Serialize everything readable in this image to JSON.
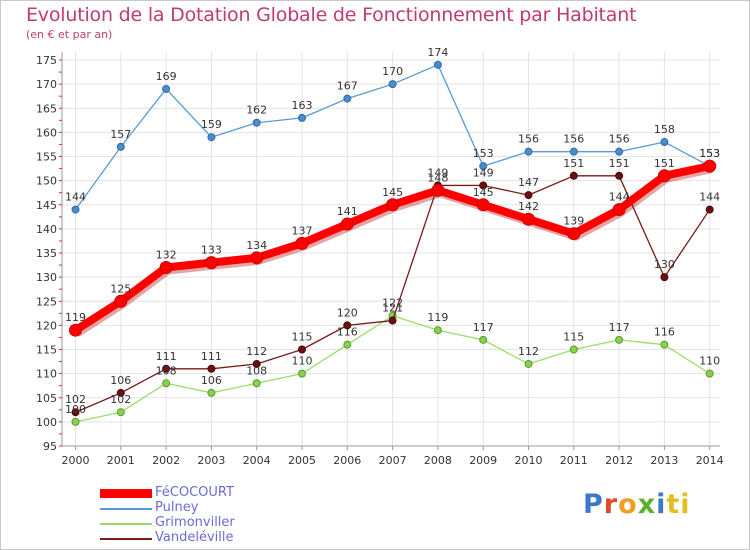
{
  "chart_data": {
    "type": "line",
    "title": "Evolution de la Dotation Globale de Fonctionnement par Habitant",
    "subtitle": "(en € et par an)",
    "x": [
      "2000",
      "2001",
      "2002",
      "2003",
      "2004",
      "2005",
      "2006",
      "2007",
      "2008",
      "2009",
      "2010",
      "2011",
      "2012",
      "2013",
      "2014"
    ],
    "y_ticks": [
      95,
      100,
      105,
      110,
      115,
      120,
      125,
      130,
      135,
      140,
      145,
      150,
      155,
      160,
      165,
      170,
      175
    ],
    "ylim": [
      95,
      175
    ],
    "grid": true,
    "legend_position": "bottom-left",
    "series": [
      {
        "name": "FéCOCOURT",
        "color": "#ff0000",
        "values": [
          119,
          125,
          132,
          133,
          134,
          137,
          141,
          145,
          148,
          145,
          142,
          139,
          144,
          151,
          153
        ],
        "labels": [
          "119",
          "125",
          "132",
          "133",
          "134",
          "137",
          "141",
          "145",
          "148",
          "145",
          "142",
          "139",
          "144",
          "151",
          "153"
        ]
      },
      {
        "name": "Pulney",
        "color": "#5b9bd5",
        "values": [
          144,
          157,
          169,
          159,
          162,
          163,
          167,
          170,
          174,
          153,
          156,
          156,
          156,
          158,
          153
        ],
        "labels": [
          "144",
          "157",
          "169",
          "159",
          "162",
          "163",
          "167",
          "170",
          "174",
          "153",
          "156",
          "156",
          "156",
          "158",
          "153"
        ]
      },
      {
        "name": "Grimonviller",
        "color": "#99dd66",
        "values": [
          100,
          102,
          108,
          106,
          108,
          110,
          116,
          122,
          119,
          117,
          112,
          115,
          117,
          116,
          110
        ],
        "labels": [
          "100",
          "102",
          "108",
          "106",
          "108",
          "110",
          "116",
          "122",
          "119",
          "117",
          "112",
          "115",
          "117",
          "116",
          "110"
        ]
      },
      {
        "name": "Vandeléville",
        "color": "#7a1a1a",
        "values": [
          102,
          106,
          111,
          111,
          112,
          115,
          120,
          121,
          149,
          149,
          147,
          151,
          151,
          130,
          144
        ],
        "labels": [
          "102",
          "106",
          "111",
          "111",
          "112",
          "115",
          "120",
          "121",
          "149",
          "149",
          "147",
          "151",
          "151",
          "130",
          "144"
        ]
      }
    ]
  },
  "logo": {
    "l1": "P",
    "l2": "r",
    "l3": "o",
    "l4": "x",
    "l5": "i",
    "l6": "ti"
  }
}
